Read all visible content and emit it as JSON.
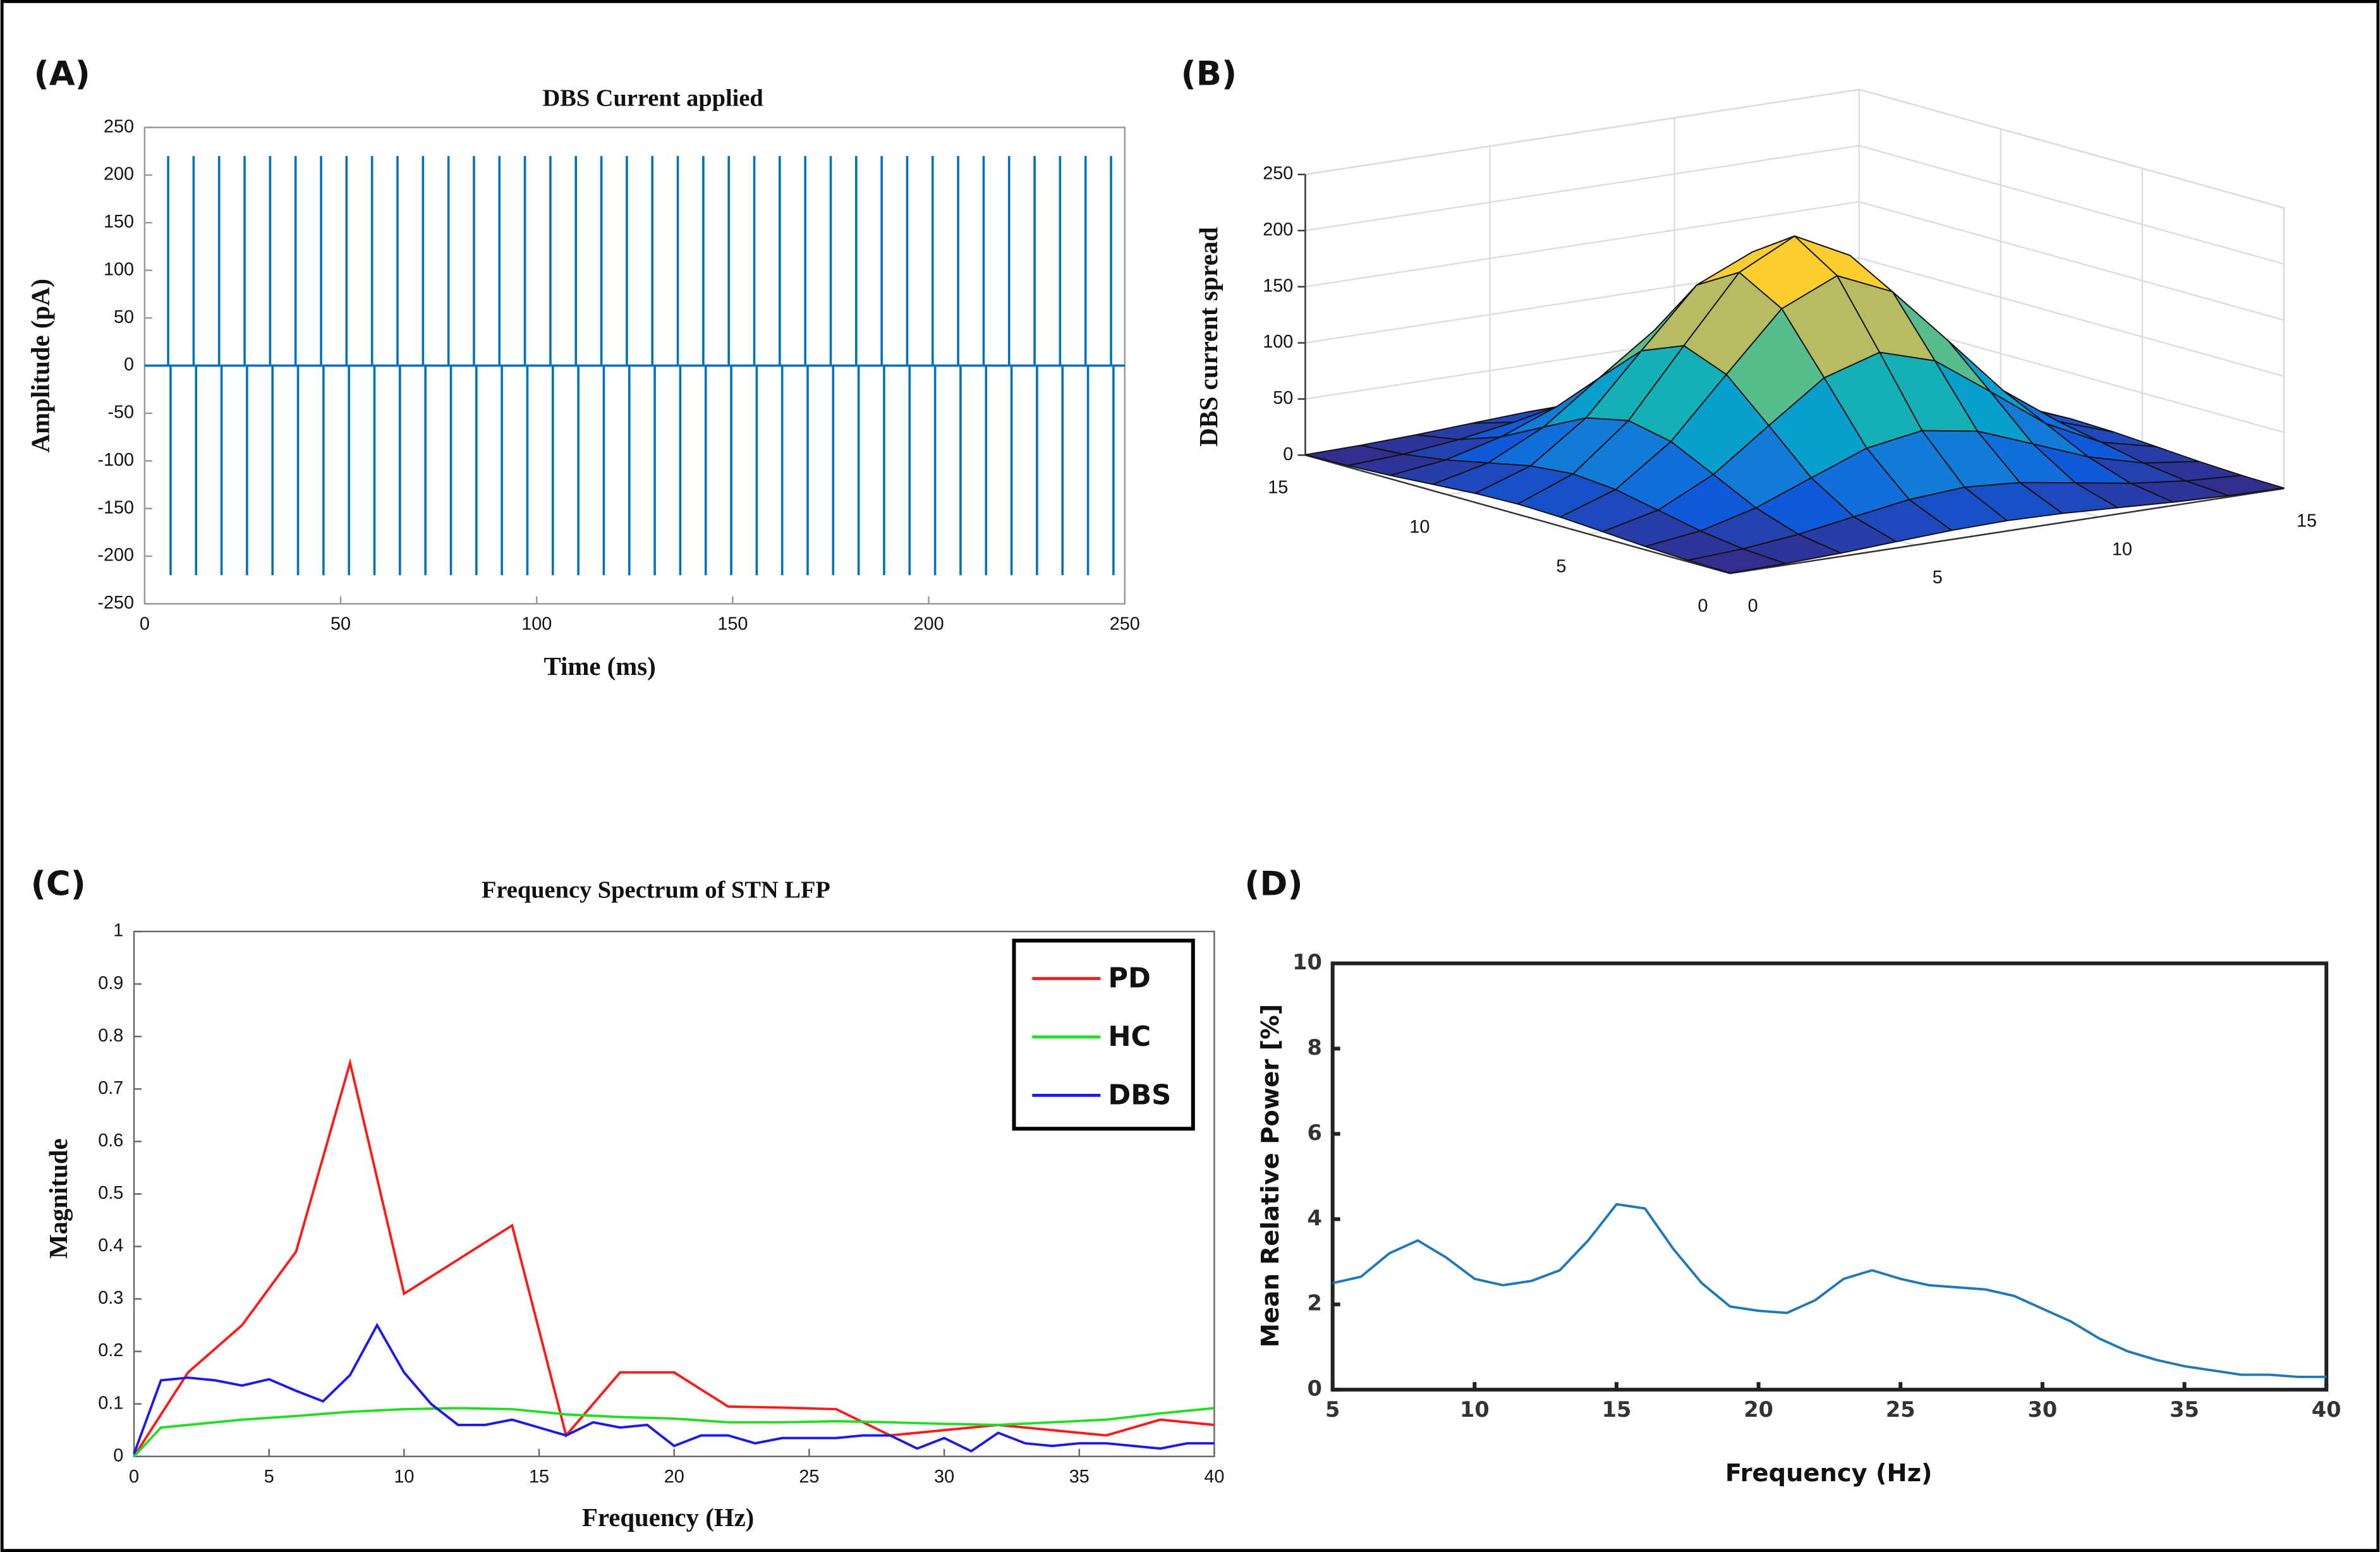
{
  "chart_data": [
    {
      "type": "pulse",
      "panel_label": "(A)",
      "title": "DBS Current applied",
      "xlabel": "Time (ms)",
      "ylabel": "Amplitude (pA)",
      "xlim": [
        0,
        250
      ],
      "ylim": [
        -250,
        250
      ],
      "xticks": [
        0,
        50,
        100,
        150,
        200,
        250
      ],
      "yticks": [
        -250,
        -200,
        -150,
        -100,
        -50,
        0,
        50,
        100,
        150,
        200,
        250
      ],
      "grid": false,
      "color": "#0072bd",
      "x": [
        6,
        12.5,
        19,
        25.5,
        32,
        38.5,
        45,
        51.5,
        58,
        64.5,
        71,
        77.5,
        84,
        90.5,
        97,
        103.5,
        110,
        116.5,
        123,
        129.5,
        136,
        142.5,
        149,
        155.5,
        162,
        168.5,
        175,
        181.5,
        188,
        194.5,
        201,
        207.5,
        214,
        220.5,
        227,
        233.5,
        240,
        246.5
      ],
      "series": [
        {
          "values": [
            220,
            220,
            220,
            220,
            220,
            220,
            220,
            220,
            220,
            220,
            220,
            220,
            220,
            220,
            220,
            220,
            220,
            220,
            220,
            220,
            220,
            220,
            220,
            220,
            220,
            220,
            220,
            220,
            220,
            220,
            220,
            220,
            220,
            220,
            220,
            220,
            220,
            220
          ]
        },
        {
          "values": [
            -220,
            -220,
            -220,
            -220,
            -220,
            -220,
            -220,
            -220,
            -220,
            -220,
            -220,
            -220,
            -220,
            -220,
            -220,
            -220,
            -220,
            -220,
            -220,
            -220,
            -220,
            -220,
            -220,
            -220,
            -220,
            -220,
            -220,
            -220,
            -220,
            -220,
            -220,
            -220,
            -220,
            -220,
            -220,
            -220,
            -220,
            -220
          ]
        }
      ]
    },
    {
      "type": "surface",
      "panel_label": "(B)",
      "zlabel": "DBS current spread",
      "colormap": "parula",
      "grid": true,
      "xlim": [
        0,
        15
      ],
      "ylim": [
        0,
        15
      ],
      "zlim": [
        0,
        250
      ],
      "xticks": [
        0,
        5,
        10,
        15
      ],
      "yticks": [
        0,
        5,
        10,
        15
      ],
      "zticks": [
        0,
        50,
        100,
        150,
        200,
        250
      ],
      "x": [
        0,
        1.5,
        3,
        4.5,
        6,
        7.5,
        9,
        10.5,
        12,
        13.5,
        15
      ],
      "y": [
        0,
        1.5,
        3,
        4.5,
        6,
        7.5,
        9,
        10.5,
        12,
        13.5,
        15
      ],
      "z": [
        [
          0.4,
          1.2,
          3,
          5.6,
          8.1,
          9.2,
          8.1,
          5.6,
          3,
          1.2,
          0.4
        ],
        [
          1.2,
          3.8,
          9.2,
          17.2,
          25,
          28.4,
          25,
          17.2,
          9.2,
          3.8,
          1.2
        ],
        [
          3,
          9.2,
          22.2,
          41.4,
          60.2,
          68.3,
          60.2,
          41.4,
          22.2,
          9.2,
          3
        ],
        [
          5.6,
          17.2,
          41.4,
          77.4,
          112.4,
          127.5,
          112.4,
          77.4,
          41.4,
          17.2,
          5.6
        ],
        [
          8.1,
          25,
          60.2,
          112.4,
          163.4,
          185.2,
          163.4,
          112.4,
          60.2,
          25,
          8.1
        ],
        [
          9.2,
          28.4,
          68.3,
          127.5,
          185.2,
          210,
          185.2,
          127.5,
          68.3,
          28.4,
          9.2
        ],
        [
          8.1,
          25,
          60.2,
          112.4,
          163.4,
          185.2,
          163.4,
          112.4,
          60.2,
          25,
          8.1
        ],
        [
          5.6,
          17.2,
          41.4,
          77.4,
          112.4,
          127.5,
          112.4,
          77.4,
          41.4,
          17.2,
          5.6
        ],
        [
          3,
          9.2,
          22.2,
          41.4,
          60.2,
          68.3,
          60.2,
          41.4,
          22.2,
          9.2,
          3
        ],
        [
          1.2,
          3.8,
          9.2,
          17.2,
          25,
          28.4,
          25,
          17.2,
          9.2,
          3.8,
          1.2
        ],
        [
          0.4,
          1.2,
          3,
          5.6,
          8.1,
          9.2,
          8.1,
          5.6,
          3,
          1.2,
          0.4
        ]
      ]
    },
    {
      "type": "line",
      "panel_label": "(C)",
      "title": "Frequency Spectrum of STN LFP",
      "xlabel": "Frequency (Hz)",
      "ylabel": "Magnitude",
      "xlim": [
        0,
        40
      ],
      "ylim": [
        0,
        1
      ],
      "xticks": [
        0,
        5,
        10,
        15,
        20,
        25,
        30,
        35,
        40
      ],
      "yticks": [
        0,
        0.1,
        0.2,
        0.3,
        0.4,
        0.5,
        0.6,
        0.7,
        0.8,
        0.9,
        1
      ],
      "grid": false,
      "legend": "upper right",
      "series": [
        {
          "name": "PD",
          "color": "#ff1a1a",
          "x": [
            0,
            2,
            4,
            6,
            8,
            10,
            14,
            16,
            18,
            20,
            22,
            24,
            26,
            28,
            30,
            32,
            34,
            36,
            38,
            40
          ],
          "values": [
            0,
            0.16,
            0.25,
            0.39,
            0.75,
            0.31,
            0.44,
            0.04,
            0.16,
            0.16,
            0.095,
            0.093,
            0.09,
            0.04,
            0.05,
            0.06,
            0.05,
            0.04,
            0.07,
            0.06
          ]
        },
        {
          "name": "HC",
          "color": "#22dd22",
          "x": [
            0,
            1,
            2,
            4,
            6,
            8,
            10,
            12,
            14,
            16,
            18,
            20,
            22,
            24,
            26,
            28,
            30,
            32,
            34,
            36,
            38,
            40
          ],
          "values": [
            0,
            0.055,
            0.06,
            0.07,
            0.077,
            0.085,
            0.09,
            0.092,
            0.09,
            0.08,
            0.075,
            0.072,
            0.065,
            0.065,
            0.067,
            0.065,
            0.062,
            0.06,
            0.065,
            0.07,
            0.082,
            0.092
          ]
        },
        {
          "name": "DBS",
          "color": "#1a1aee",
          "x": [
            0,
            1,
            2,
            3,
            4,
            5,
            6,
            7,
            8,
            9,
            10,
            11,
            12,
            13,
            14,
            15,
            16,
            17,
            18,
            19,
            20,
            21,
            22,
            23,
            24,
            25,
            26,
            27,
            28,
            29,
            30,
            31,
            32,
            33,
            34,
            35,
            36,
            37,
            38,
            39,
            40
          ],
          "values": [
            0.005,
            0.145,
            0.15,
            0.145,
            0.135,
            0.147,
            0.125,
            0.105,
            0.155,
            0.25,
            0.16,
            0.1,
            0.06,
            0.06,
            0.07,
            0.055,
            0.04,
            0.065,
            0.055,
            0.06,
            0.02,
            0.04,
            0.04,
            0.025,
            0.035,
            0.035,
            0.035,
            0.04,
            0.04,
            0.015,
            0.035,
            0.01,
            0.045,
            0.025,
            0.02,
            0.025,
            0.025,
            0.02,
            0.015,
            0.025,
            0.025
          ]
        }
      ]
    },
    {
      "type": "line",
      "panel_label": "(D)",
      "xlabel": "Frequency (Hz)",
      "ylabel": "Mean Relative Power [%]",
      "xlim": [
        5,
        40
      ],
      "ylim": [
        0,
        10
      ],
      "xticks": [
        5,
        10,
        15,
        20,
        25,
        30,
        35,
        40
      ],
      "yticks": [
        0,
        2,
        4,
        6,
        8,
        10
      ],
      "grid": false,
      "series": [
        {
          "color": "#1f78b8",
          "x": [
            5,
            6,
            7,
            8,
            9,
            10,
            11,
            12,
            13,
            14,
            15,
            16,
            17,
            18,
            19,
            20,
            21,
            22,
            23,
            24,
            25,
            26,
            27,
            28,
            29,
            30,
            31,
            32,
            33,
            34,
            35,
            36,
            37,
            38,
            39,
            40
          ],
          "values": [
            2.5,
            2.65,
            3.2,
            3.5,
            3.1,
            2.6,
            2.45,
            2.55,
            2.8,
            3.5,
            4.35,
            4.25,
            3.3,
            2.5,
            1.95,
            1.85,
            1.8,
            2.1,
            2.6,
            2.8,
            2.6,
            2.45,
            2.4,
            2.35,
            2.2,
            1.9,
            1.6,
            1.2,
            0.9,
            0.7,
            0.55,
            0.45,
            0.35,
            0.35,
            0.3,
            0.3
          ]
        }
      ]
    }
  ]
}
